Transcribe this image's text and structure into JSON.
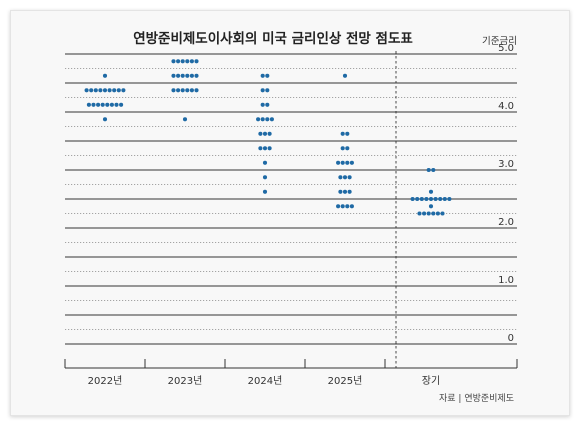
{
  "chart_data": {
    "type": "scatter",
    "title": "연방준비제도이사회의 미국 금리인상 전망 점도표",
    "ylabel": "기준금리",
    "ylim": [
      0,
      5.0
    ],
    "yticks": [
      "0",
      "1.0",
      "2.0",
      "3.0",
      "4.0",
      "5.0"
    ],
    "grid": true,
    "categories": [
      "2022년",
      "2023년",
      "2024년",
      "2025년",
      "장기"
    ],
    "series": [
      {
        "x": "2022년",
        "points": [
          {
            "y": 4.625,
            "n": 1
          },
          {
            "y": 4.375,
            "n": 9
          },
          {
            "y": 4.125,
            "n": 8
          },
          {
            "y": 3.875,
            "n": 1
          }
        ]
      },
      {
        "x": "2023년",
        "points": [
          {
            "y": 4.875,
            "n": 6
          },
          {
            "y": 4.625,
            "n": 6
          },
          {
            "y": 4.375,
            "n": 6
          },
          {
            "y": 3.875,
            "n": 1
          }
        ]
      },
      {
        "x": "2024년",
        "points": [
          {
            "y": 4.625,
            "n": 2
          },
          {
            "y": 4.375,
            "n": 2
          },
          {
            "y": 4.125,
            "n": 2
          },
          {
            "y": 3.875,
            "n": 4
          },
          {
            "y": 3.625,
            "n": 3
          },
          {
            "y": 3.375,
            "n": 3
          },
          {
            "y": 3.125,
            "n": 1
          },
          {
            "y": 2.875,
            "n": 1
          },
          {
            "y": 2.625,
            "n": 1
          }
        ]
      },
      {
        "x": "2025년",
        "points": [
          {
            "y": 4.625,
            "n": 1
          },
          {
            "y": 3.625,
            "n": 2
          },
          {
            "y": 3.375,
            "n": 2
          },
          {
            "y": 3.125,
            "n": 4
          },
          {
            "y": 2.875,
            "n": 3
          },
          {
            "y": 2.625,
            "n": 3
          },
          {
            "y": 2.375,
            "n": 4
          }
        ]
      },
      {
        "x": "장기",
        "points": [
          {
            "y": 3.0,
            "n": 2
          },
          {
            "y": 2.625,
            "n": 1
          },
          {
            "y": 2.5,
            "n": 9
          },
          {
            "y": 2.375,
            "n": 1
          },
          {
            "y": 2.25,
            "n": 6
          }
        ]
      }
    ],
    "dot_color": "#1f6aa5",
    "source": "자료 | 연방준비제도"
  }
}
